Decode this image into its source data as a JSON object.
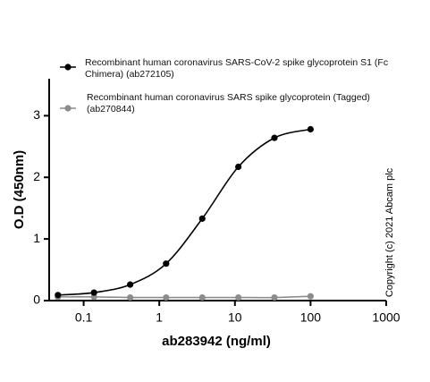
{
  "chart_data": {
    "type": "line",
    "x_label": "ab283942 (ng/ml)",
    "y_label": "O.D (450nm)",
    "annotation": "Copyright (c) 2021 Abcam plc",
    "x": [
      0.0457,
      0.137,
      0.412,
      1.23,
      3.7,
      11.1,
      33.3,
      100
    ],
    "series": [
      {
        "name": "Recombinant human coronavirus SARS-CoV-2 spike glycoprotein S1 (Fc Chimera) (ab272105)",
        "color": "#000000",
        "values": [
          0.09,
          0.13,
          0.26,
          0.6,
          1.33,
          2.17,
          2.64,
          2.78
        ]
      },
      {
        "name": "Recombinant human coronavirus SARS spike glycoprotein (Tagged) (ab270844)",
        "color": "#8c8c8c",
        "values": [
          0.06,
          0.06,
          0.05,
          0.05,
          0.05,
          0.05,
          0.05,
          0.07
        ]
      }
    ],
    "xscale": "log",
    "xlim": [
      0.035,
      1000
    ],
    "xticks": [
      0.1,
      1,
      10,
      100,
      1000
    ],
    "ylim": [
      0,
      3.6
    ],
    "yticks": [
      0,
      1,
      2,
      3
    ],
    "grid": false
  }
}
